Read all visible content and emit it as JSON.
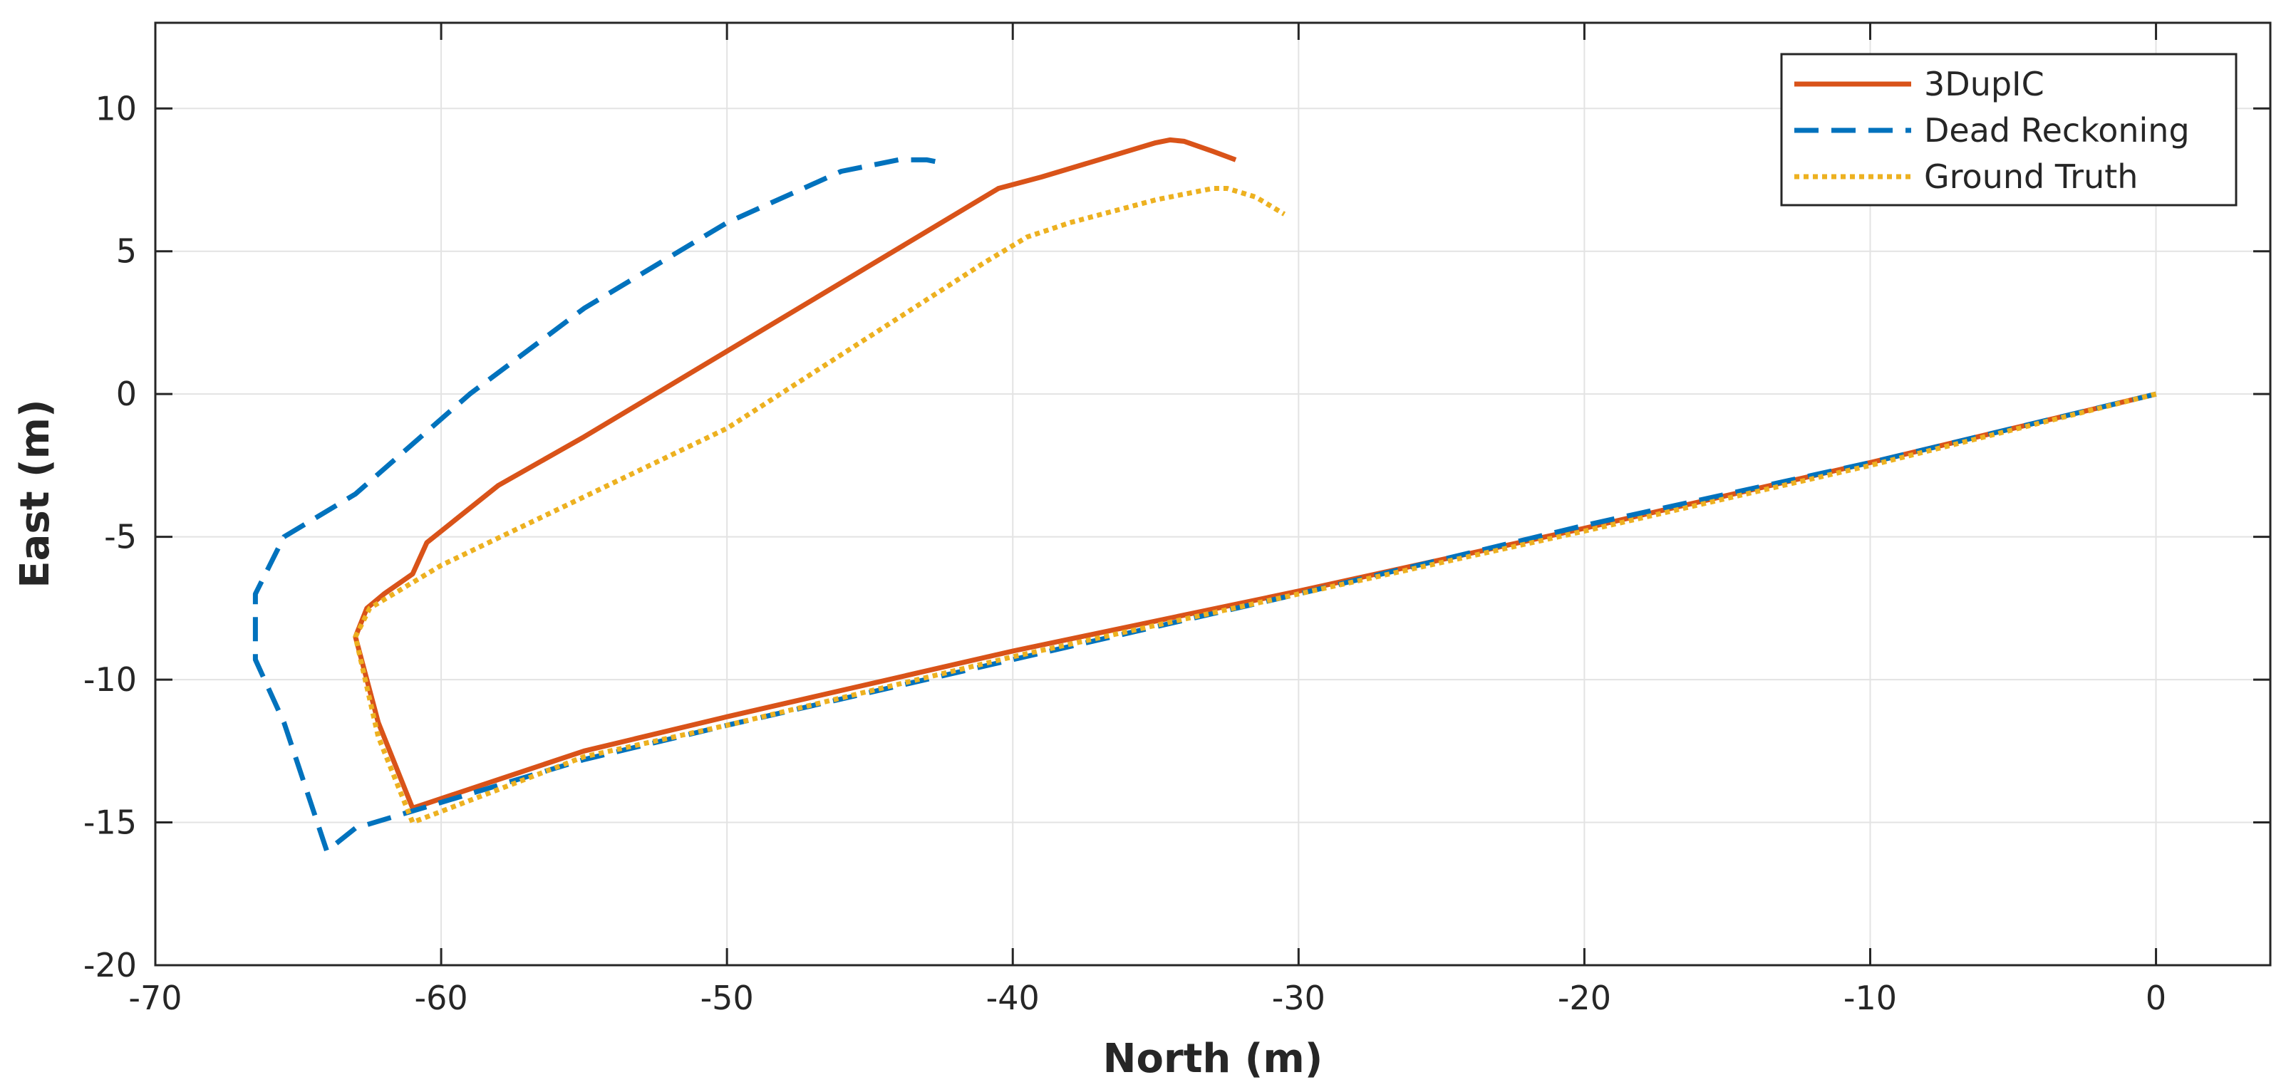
{
  "chart_data": {
    "type": "line",
    "title": "",
    "xlabel": "North (m)",
    "ylabel": "East (m)",
    "xlim": [
      -70,
      4
    ],
    "ylim": [
      -20,
      13
    ],
    "xticks": [
      -70,
      -60,
      -50,
      -40,
      -30,
      -20,
      -10,
      0
    ],
    "yticks": [
      -20,
      -15,
      -10,
      -5,
      0,
      5,
      10
    ],
    "xtick_labels": [
      "-70",
      "-60",
      "-50",
      "-40",
      "-30",
      "-20",
      "-10",
      "0"
    ],
    "ytick_labels": [
      "-20",
      "-15",
      "-10",
      "-5",
      "0",
      "5",
      "10"
    ],
    "grid": true,
    "legend_position": "top-right",
    "series": [
      {
        "name": "3DupIC",
        "color": "#D95319",
        "style": "solid",
        "x": [
          0,
          -10,
          -20,
          -30,
          -40,
          -50,
          -55,
          -61,
          -62.2,
          -63,
          -62.6,
          -62,
          -61,
          -60.5,
          -58,
          -55,
          -50,
          -45,
          -40.5,
          -39,
          -35,
          -34.5,
          -34,
          -33,
          -32.2
        ],
        "y": [
          0,
          -2.4,
          -4.7,
          -6.9,
          -9.0,
          -11.3,
          -12.5,
          -14.5,
          -11.5,
          -8.5,
          -7.5,
          -7.0,
          -6.3,
          -5.2,
          -3.2,
          -1.5,
          1.5,
          4.5,
          7.2,
          7.6,
          8.8,
          8.9,
          8.85,
          8.5,
          8.2
        ]
      },
      {
        "name": "Dead Reckoning",
        "color": "#0072BD",
        "style": "dashed",
        "x": [
          0,
          -10,
          -20,
          -30,
          -40,
          -50,
          -55,
          -61,
          -63,
          -64,
          -65.5,
          -66.5,
          -66.5,
          -65.5,
          -63,
          -59,
          -55,
          -50,
          -46,
          -44,
          -43,
          -42.5
        ],
        "y": [
          0,
          -2.4,
          -4.6,
          -7.0,
          -9.3,
          -11.6,
          -12.8,
          -14.6,
          -15.2,
          -16.0,
          -11.5,
          -9.3,
          -7.0,
          -5.0,
          -3.5,
          0,
          3.0,
          6.0,
          7.8,
          8.2,
          8.2,
          8.1
        ]
      },
      {
        "name": "Ground Truth",
        "color": "#EDB120",
        "style": "dotted",
        "x": [
          0,
          -10,
          -20,
          -30,
          -40,
          -50,
          -55,
          -61,
          -62.2,
          -63,
          -62.5,
          -60,
          -50,
          -41,
          -39.5,
          -38,
          -35,
          -33,
          -32.5,
          -31.5,
          -30.5
        ],
        "y": [
          0,
          -2.5,
          -4.8,
          -7.0,
          -9.2,
          -11.6,
          -12.7,
          -15.0,
          -12.0,
          -8.5,
          -7.5,
          -6.0,
          -1.2,
          4.6,
          5.5,
          6.0,
          6.8,
          7.2,
          7.2,
          6.9,
          6.3
        ]
      }
    ]
  }
}
